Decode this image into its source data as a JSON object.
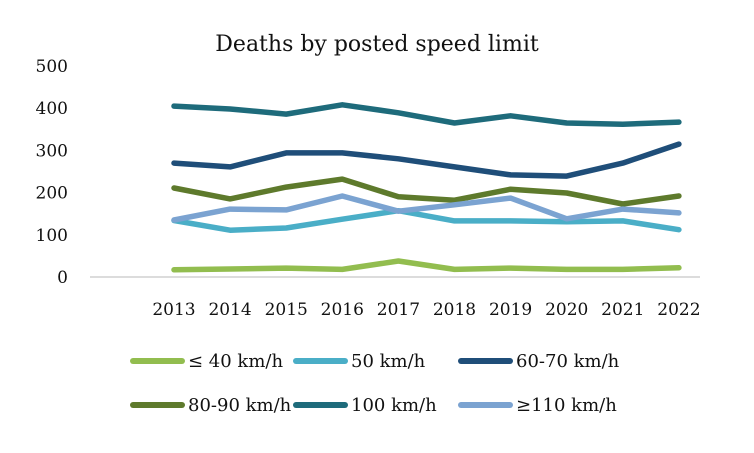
{
  "chart_data": {
    "type": "line",
    "title": "Deaths by posted speed limit",
    "xlabel": "",
    "ylabel": "",
    "ylim": [
      0,
      500
    ],
    "yticks": [
      "0",
      "100",
      "200",
      "300",
      "400",
      "500"
    ],
    "ytick_values": [
      0,
      100,
      200,
      300,
      400,
      500
    ],
    "grid": false,
    "legend_position": "bottom",
    "categories": [
      "2013",
      "2014",
      "2015",
      "2016",
      "2017",
      "2018",
      "2019",
      "2020",
      "2021",
      "2022"
    ],
    "series": [
      {
        "name": "≤ 40 km/h",
        "color": "#92bd4f",
        "values": [
          17,
          19,
          21,
          18,
          38,
          18,
          21,
          18,
          18,
          22
        ]
      },
      {
        "name": "50 km/h",
        "color": "#4aaec7",
        "values": [
          134,
          111,
          116,
          137,
          157,
          133,
          133,
          131,
          133,
          112
        ]
      },
      {
        "name": "60-70 km/h",
        "color": "#1f4e79",
        "values": [
          270,
          261,
          294,
          294,
          280,
          261,
          242,
          239,
          270,
          315
        ]
      },
      {
        "name": "80-90 km/h",
        "color": "#5e7a2c",
        "values": [
          211,
          185,
          213,
          232,
          190,
          182,
          208,
          199,
          173,
          192
        ]
      },
      {
        "name": "100 km/h",
        "color": "#1e6b7b",
        "values": [
          405,
          398,
          386,
          408,
          389,
          365,
          382,
          365,
          362,
          367
        ]
      },
      {
        "name": "≥110 km/h",
        "color": "#7ba3d1",
        "values": [
          135,
          161,
          159,
          192,
          156,
          171,
          187,
          138,
          161,
          152
        ]
      }
    ]
  }
}
